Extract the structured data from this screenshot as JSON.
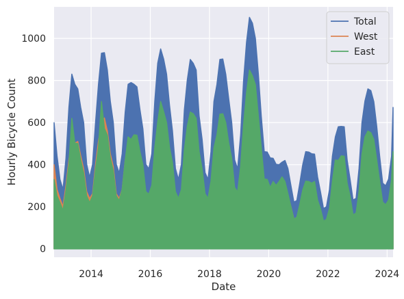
{
  "chart_data": {
    "type": "area",
    "title": "",
    "xlabel": "Date",
    "ylabel": "Hourly Bicycle Count",
    "xlim": [
      2012.75,
      2024.2
    ],
    "ylim": [
      -40,
      1150
    ],
    "xticks": [
      2014,
      2016,
      2018,
      2020,
      2022,
      2024
    ],
    "yticks": [
      0,
      200,
      400,
      600,
      800,
      1000
    ],
    "grid": true,
    "background": "#eaeaf2",
    "legend_position": "top-right",
    "series": [
      {
        "name": "Total",
        "color": "#4c72b0",
        "x": [
          2012.75,
          2012.85,
          2012.95,
          2013.05,
          2013.15,
          2013.25,
          2013.35,
          2013.45,
          2013.55,
          2013.65,
          2013.75,
          2013.85,
          2013.95,
          2014.05,
          2014.15,
          2014.25,
          2014.35,
          2014.45,
          2014.55,
          2014.65,
          2014.75,
          2014.85,
          2014.95,
          2015.05,
          2015.15,
          2015.25,
          2015.35,
          2015.45,
          2015.55,
          2015.65,
          2015.75,
          2015.85,
          2015.95,
          2016.05,
          2016.15,
          2016.25,
          2016.35,
          2016.45,
          2016.55,
          2016.65,
          2016.75,
          2016.85,
          2016.95,
          2017.05,
          2017.15,
          2017.25,
          2017.35,
          2017.45,
          2017.55,
          2017.65,
          2017.75,
          2017.85,
          2017.95,
          2018.05,
          2018.15,
          2018.25,
          2018.35,
          2018.45,
          2018.55,
          2018.65,
          2018.75,
          2018.85,
          2018.95,
          2019.05,
          2019.15,
          2019.25,
          2019.35,
          2019.45,
          2019.55,
          2019.65,
          2019.75,
          2019.85,
          2019.95,
          2020.05,
          2020.15,
          2020.25,
          2020.35,
          2020.45,
          2020.55,
          2020.65,
          2020.75,
          2020.85,
          2020.95,
          2021.05,
          2021.15,
          2021.25,
          2021.35,
          2021.45,
          2021.55,
          2021.65,
          2021.75,
          2021.85,
          2021.95,
          2022.05,
          2022.15,
          2022.25,
          2022.35,
          2022.45,
          2022.55,
          2022.65,
          2022.75,
          2022.85,
          2022.95,
          2023.05,
          2023.15,
          2023.25,
          2023.35,
          2023.45,
          2023.55,
          2023.65,
          2023.75,
          2023.85,
          2023.95,
          2024.05,
          2024.15,
          2024.2
        ],
        "values": [
          600,
          460,
          330,
          300,
          430,
          690,
          830,
          800,
          760,
          690,
          600,
          420,
          340,
          420,
          600,
          800,
          930,
          950,
          850,
          720,
          600,
          420,
          360,
          470,
          650,
          800,
          790,
          800,
          770,
          680,
          570,
          420,
          380,
          470,
          700,
          900,
          950,
          920,
          830,
          700,
          560,
          400,
          330,
          420,
          660,
          820,
          900,
          900,
          850,
          650,
          520,
          380,
          330,
          480,
          700,
          800,
          900,
          920,
          830,
          730,
          600,
          440,
          380,
          560,
          800,
          1000,
          1100,
          1090,
          1000,
          850,
          630,
          480,
          460,
          450,
          430,
          420,
          400,
          430,
          420,
          400,
          300,
          240,
          230,
          330,
          400,
          480,
          460,
          470,
          450,
          360,
          270,
          210,
          200,
          300,
          440,
          550,
          580,
          600,
          580,
          440,
          330,
          250,
          240,
          400,
          600,
          720,
          760,
          770,
          700,
          600,
          440,
          330,
          300,
          350,
          440,
          690
        ]
      },
      {
        "name": "West",
        "color": "#dd8452",
        "x": [
          2012.75,
          2012.85,
          2012.95,
          2013.05,
          2013.15,
          2013.25,
          2013.35,
          2013.45,
          2013.55,
          2013.65,
          2013.75,
          2013.85,
          2013.95,
          2014.05,
          2014.15,
          2014.25,
          2014.35,
          2014.45,
          2014.55,
          2014.65,
          2014.75,
          2014.85,
          2014.95,
          2015.05,
          2015.15,
          2015.25,
          2015.35,
          2015.45,
          2015.55,
          2015.65,
          2015.75,
          2015.85,
          2015.95,
          2016.05,
          2016.15,
          2016.25,
          2016.35,
          2016.45,
          2016.55,
          2016.65,
          2016.75,
          2016.85,
          2016.95,
          2017.05,
          2017.15,
          2017.25,
          2017.35,
          2017.45,
          2017.55,
          2017.65,
          2017.75,
          2017.85,
          2017.95,
          2018.05,
          2018.15,
          2018.25,
          2018.35,
          2018.45,
          2018.55,
          2018.65,
          2018.75,
          2018.85,
          2018.95,
          2019.05,
          2019.15,
          2019.25,
          2019.35,
          2019.45,
          2019.55,
          2019.65,
          2019.75,
          2019.85,
          2019.95,
          2020.05,
          2020.15,
          2020.25,
          2020.35,
          2020.45,
          2020.55,
          2020.65,
          2020.75,
          2020.85,
          2020.95,
          2021.05,
          2021.15,
          2021.25,
          2021.35,
          2021.45,
          2021.55,
          2021.65,
          2021.75,
          2021.85,
          2021.95,
          2022.05,
          2022.15,
          2022.25,
          2022.35,
          2022.45,
          2022.55,
          2022.65,
          2022.75,
          2022.85,
          2022.95,
          2023.05,
          2023.15,
          2023.25,
          2023.35,
          2023.45,
          2023.55,
          2023.65,
          2023.75,
          2023.85,
          2023.95,
          2024.05,
          2024.15,
          2024.2
        ],
        "values": [
          400,
          300,
          240,
          220,
          300,
          440,
          530,
          520,
          510,
          460,
          380,
          290,
          240,
          280,
          400,
          530,
          600,
          640,
          560,
          470,
          390,
          280,
          240,
          300,
          420,
          520,
          520,
          520,
          500,
          440,
          370,
          280,
          250,
          300,
          440,
          560,
          600,
          580,
          520,
          440,
          360,
          260,
          210,
          270,
          420,
          520,
          570,
          570,
          540,
          420,
          330,
          250,
          210,
          300,
          440,
          500,
          560,
          580,
          520,
          460,
          380,
          280,
          240,
          350,
          500,
          620,
          700,
          690,
          630,
          540,
          400,
          300,
          290,
          290,
          300,
          300,
          290,
          350,
          300,
          270,
          200,
          160,
          150,
          220,
          270,
          320,
          300,
          310,
          300,
          240,
          180,
          140,
          130,
          200,
          300,
          420,
          380,
          400,
          380,
          290,
          220,
          160,
          150,
          260,
          390,
          460,
          480,
          490,
          450,
          390,
          290,
          220,
          190,
          230,
          290,
          460
        ]
      },
      {
        "name": "East",
        "color": "#55a868",
        "x": [
          2012.75,
          2012.85,
          2012.95,
          2013.05,
          2013.15,
          2013.25,
          2013.35,
          2013.45,
          2013.55,
          2013.65,
          2013.75,
          2013.85,
          2013.95,
          2014.05,
          2014.15,
          2014.25,
          2014.35,
          2014.45,
          2014.55,
          2014.65,
          2014.75,
          2014.85,
          2014.95,
          2015.05,
          2015.15,
          2015.25,
          2015.35,
          2015.45,
          2015.55,
          2015.65,
          2015.75,
          2015.85,
          2015.95,
          2016.05,
          2016.15,
          2016.25,
          2016.35,
          2016.45,
          2016.55,
          2016.65,
          2016.75,
          2016.85,
          2016.95,
          2017.05,
          2017.15,
          2017.25,
          2017.35,
          2017.45,
          2017.55,
          2017.65,
          2017.75,
          2017.85,
          2017.95,
          2018.05,
          2018.15,
          2018.25,
          2018.35,
          2018.45,
          2018.55,
          2018.65,
          2018.75,
          2018.85,
          2018.95,
          2019.05,
          2019.15,
          2019.25,
          2019.35,
          2019.45,
          2019.55,
          2019.65,
          2019.75,
          2019.85,
          2019.95,
          2020.05,
          2020.15,
          2020.25,
          2020.35,
          2020.45,
          2020.55,
          2020.65,
          2020.75,
          2020.85,
          2020.95,
          2021.05,
          2021.15,
          2021.25,
          2021.35,
          2021.45,
          2021.55,
          2021.65,
          2021.75,
          2021.85,
          2021.95,
          2022.05,
          2022.15,
          2022.25,
          2022.35,
          2022.45,
          2022.55,
          2022.65,
          2022.75,
          2022.85,
          2022.95,
          2023.05,
          2023.15,
          2023.25,
          2023.35,
          2023.45,
          2023.55,
          2023.65,
          2023.75,
          2023.85,
          2023.95,
          2024.05,
          2024.15,
          2024.2
        ],
        "values": [
          330,
          270,
          220,
          200,
          280,
          420,
          620,
          520,
          500,
          440,
          360,
          270,
          220,
          270,
          380,
          500,
          700,
          590,
          540,
          450,
          370,
          270,
          230,
          300,
          420,
          550,
          520,
          560,
          540,
          480,
          400,
          290,
          260,
          320,
          480,
          620,
          700,
          670,
          600,
          500,
          410,
          290,
          240,
          300,
          470,
          600,
          650,
          660,
          620,
          480,
          380,
          280,
          240,
          340,
          480,
          560,
          640,
          660,
          600,
          520,
          430,
          310,
          270,
          410,
          590,
          760,
          850,
          840,
          780,
          650,
          480,
          350,
          330,
          310,
          320,
          320,
          320,
          360,
          320,
          280,
          200,
          160,
          150,
          230,
          280,
          340,
          320,
          330,
          320,
          250,
          190,
          150,
          140,
          210,
          320,
          440,
          420,
          460,
          440,
          330,
          250,
          180,
          170,
          290,
          450,
          550,
          560,
          570,
          520,
          440,
          320,
          240,
          210,
          250,
          330,
          480
        ]
      }
    ]
  }
}
